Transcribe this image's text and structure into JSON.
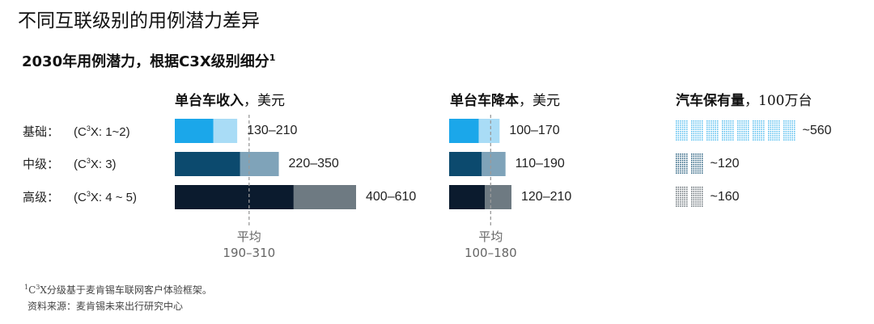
{
  "title": "不同互联级别的用例潜力差异",
  "subtitle": {
    "text": "2030年用例潜力，根据C3X级别细分",
    "footnote_mark": "1"
  },
  "columns": [
    {
      "bold": "单台车收入",
      "unit": "，美元"
    },
    {
      "bold": "单台车降本",
      "unit": "，美元"
    },
    {
      "bold": "汽车保有量",
      "unit": "，100万台"
    }
  ],
  "rows": [
    {
      "label": "基础：",
      "code_pre": "(C",
      "code_sup": "3",
      "code_post": "X: 1~2)"
    },
    {
      "label": "中级：",
      "code_pre": "(C",
      "code_sup": "3",
      "code_post": "X: 3)"
    },
    {
      "label": "高级：",
      "code_pre": "(C",
      "code_sup": "3",
      "code_post": "X: 4 ~ 5)"
    }
  ],
  "footnotes": {
    "note_mark": "1",
    "note_pre": "C",
    "note_sup": "3",
    "note_post": "X分级基于麦肯锡车联网客户体验框架。",
    "source": "资料来源：麦肯锡未来出行研究中心"
  },
  "colors": {
    "basic": {
      "dark": "#1ba7ea",
      "light": "#a9dcf6"
    },
    "mid": {
      "dark": "#0c4a6e",
      "light": "#7fa3b9"
    },
    "high": {
      "dark": "#0b1b2e",
      "light": "#6e7a82"
    },
    "avg_line": "#9a9a9a"
  },
  "chart_data": [
    {
      "type": "bar",
      "subtype": "range",
      "title": "单台车收入，美元",
      "categories": [
        "基础",
        "中级",
        "高级"
      ],
      "low": [
        130,
        220,
        400
      ],
      "high": [
        210,
        350,
        610
      ],
      "value_labels": [
        "130–210",
        "220–350",
        "400–610"
      ],
      "average": {
        "label": "平均",
        "range_label": "190–310",
        "low": 190,
        "high": 310
      }
    },
    {
      "type": "bar",
      "subtype": "range",
      "title": "单台车降本，美元",
      "categories": [
        "基础",
        "中级",
        "高级"
      ],
      "low": [
        100,
        110,
        120
      ],
      "high": [
        170,
        190,
        210
      ],
      "value_labels": [
        "100–170",
        "110–190",
        "120–210"
      ],
      "average": {
        "label": "平均",
        "range_label": "100–180",
        "low": 100,
        "high": 180
      }
    },
    {
      "type": "bar",
      "subtype": "unit",
      "title": "汽车保有量，100万台",
      "categories": [
        "基础",
        "中级",
        "高级"
      ],
      "values": [
        560,
        120,
        160
      ],
      "value_labels": [
        "~560",
        "~120",
        "~160"
      ]
    }
  ]
}
